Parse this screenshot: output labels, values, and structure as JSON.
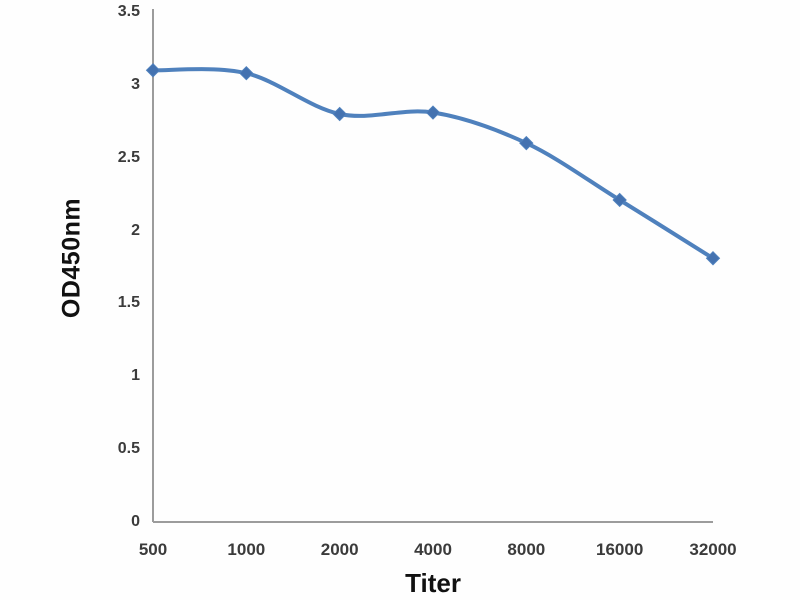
{
  "chart_data": {
    "type": "line",
    "title": "",
    "xlabel": "Titer",
    "ylabel": "OD450nm",
    "categories": [
      500,
      1000,
      2000,
      4000,
      8000,
      16000,
      32000
    ],
    "x_tick_labels": [
      "500",
      "1000",
      "2000",
      "4000",
      "8000",
      "16000",
      "32000"
    ],
    "series": [
      {
        "name": "OD450nm",
        "values": [
          3.1,
          3.08,
          2.8,
          2.81,
          2.6,
          2.21,
          1.81
        ]
      }
    ],
    "ylim": [
      0,
      3.5
    ],
    "y_ticks": [
      0,
      0.5,
      1,
      1.5,
      2,
      2.5,
      3,
      3.5
    ],
    "y_tick_labels": [
      "0",
      "0.5",
      "1",
      "1.5",
      "2",
      "2.5",
      "3",
      "3.5"
    ],
    "grid": false,
    "legend": "none",
    "line_smooth": true,
    "marker": "diamond",
    "colors": {
      "line": "#4f81bd",
      "marker": "#4472b0",
      "axis": "#9c9c9c",
      "tick_text": "#3b3b3b",
      "title_text": "#111111",
      "background": "#fefefe"
    }
  }
}
